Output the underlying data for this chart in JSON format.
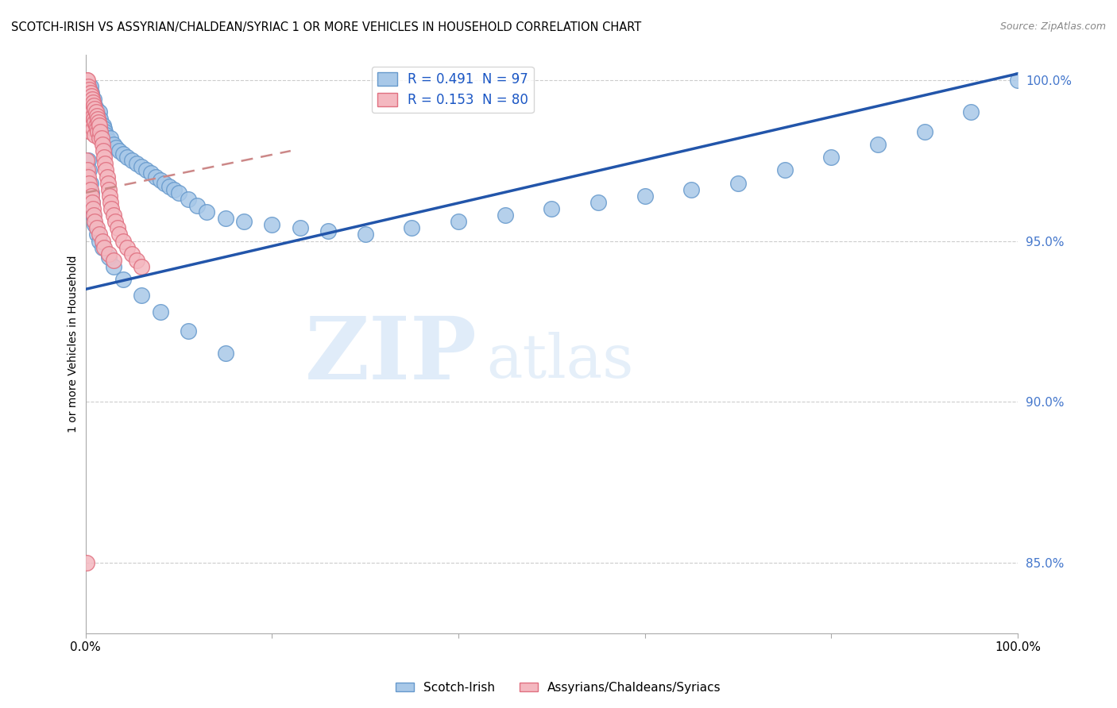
{
  "title": "SCOTCH-IRISH VS ASSYRIAN/CHALDEAN/SYRIAC 1 OR MORE VEHICLES IN HOUSEHOLD CORRELATION CHART",
  "source": "Source: ZipAtlas.com",
  "ylabel": "1 or more Vehicles in Household",
  "ytick_labels": [
    "85.0%",
    "90.0%",
    "95.0%",
    "100.0%"
  ],
  "ytick_values": [
    0.85,
    0.9,
    0.95,
    1.0
  ],
  "xlim": [
    0.0,
    1.0
  ],
  "ylim": [
    0.828,
    1.008
  ],
  "blue_color": "#a8c8e8",
  "blue_edge_color": "#6699cc",
  "pink_color": "#f4b8c0",
  "pink_edge_color": "#e07080",
  "blue_line_color": "#2255aa",
  "pink_line_color": "#cc8888",
  "R_blue": 0.491,
  "N_blue": 97,
  "R_pink": 0.153,
  "N_pink": 80,
  "legend_label_blue": "Scotch-Irish",
  "legend_label_pink": "Assyrians/Chaldeans/Syriacs",
  "watermark_zip": "ZIP",
  "watermark_atlas": "atlas",
  "blue_line_x0": 0.0,
  "blue_line_y0": 0.935,
  "blue_line_x1": 1.0,
  "blue_line_y1": 1.002,
  "pink_line_x0": 0.0,
  "pink_line_y0": 0.965,
  "pink_line_x1": 0.22,
  "pink_line_y1": 0.978,
  "blue_scatter_x": [
    0.001,
    0.002,
    0.002,
    0.003,
    0.003,
    0.004,
    0.004,
    0.004,
    0.005,
    0.005,
    0.005,
    0.006,
    0.006,
    0.006,
    0.007,
    0.007,
    0.008,
    0.008,
    0.009,
    0.009,
    0.01,
    0.01,
    0.011,
    0.011,
    0.012,
    0.012,
    0.013,
    0.013,
    0.014,
    0.015,
    0.015,
    0.016,
    0.017,
    0.018,
    0.019,
    0.02,
    0.021,
    0.022,
    0.023,
    0.025,
    0.027,
    0.03,
    0.033,
    0.036,
    0.04,
    0.045,
    0.05,
    0.055,
    0.06,
    0.065,
    0.07,
    0.075,
    0.08,
    0.085,
    0.09,
    0.095,
    0.1,
    0.11,
    0.12,
    0.13,
    0.15,
    0.17,
    0.2,
    0.23,
    0.26,
    0.3,
    0.35,
    0.4,
    0.45,
    0.5,
    0.55,
    0.6,
    0.65,
    0.7,
    0.75,
    0.8,
    0.85,
    0.9,
    0.95,
    1.0,
    0.003,
    0.004,
    0.005,
    0.006,
    0.007,
    0.008,
    0.01,
    0.012,
    0.015,
    0.018,
    0.025,
    0.03,
    0.04,
    0.06,
    0.08,
    0.11,
    0.15
  ],
  "blue_scatter_y": [
    0.998,
    0.996,
    0.99,
    0.998,
    0.992,
    0.998,
    0.994,
    0.988,
    0.998,
    0.994,
    0.99,
    0.996,
    0.992,
    0.987,
    0.994,
    0.99,
    0.992,
    0.988,
    0.994,
    0.989,
    0.992,
    0.987,
    0.991,
    0.986,
    0.99,
    0.985,
    0.989,
    0.984,
    0.988,
    0.99,
    0.985,
    0.988,
    0.986,
    0.984,
    0.986,
    0.985,
    0.984,
    0.983,
    0.982,
    0.981,
    0.982,
    0.98,
    0.979,
    0.978,
    0.977,
    0.976,
    0.975,
    0.974,
    0.973,
    0.972,
    0.971,
    0.97,
    0.969,
    0.968,
    0.967,
    0.966,
    0.965,
    0.963,
    0.961,
    0.959,
    0.957,
    0.956,
    0.955,
    0.954,
    0.953,
    0.952,
    0.954,
    0.956,
    0.958,
    0.96,
    0.962,
    0.964,
    0.966,
    0.968,
    0.972,
    0.976,
    0.98,
    0.984,
    0.99,
    1.0,
    0.975,
    0.972,
    0.968,
    0.965,
    0.962,
    0.958,
    0.955,
    0.952,
    0.95,
    0.948,
    0.945,
    0.942,
    0.938,
    0.933,
    0.928,
    0.922,
    0.915
  ],
  "pink_scatter_x": [
    0.001,
    0.001,
    0.002,
    0.002,
    0.002,
    0.003,
    0.003,
    0.003,
    0.004,
    0.004,
    0.004,
    0.005,
    0.005,
    0.005,
    0.005,
    0.006,
    0.006,
    0.006,
    0.007,
    0.007,
    0.007,
    0.008,
    0.008,
    0.008,
    0.009,
    0.009,
    0.01,
    0.01,
    0.01,
    0.011,
    0.011,
    0.012,
    0.012,
    0.013,
    0.013,
    0.014,
    0.015,
    0.015,
    0.016,
    0.017,
    0.018,
    0.019,
    0.02,
    0.021,
    0.022,
    0.023,
    0.024,
    0.025,
    0.026,
    0.027,
    0.028,
    0.03,
    0.032,
    0.034,
    0.036,
    0.04,
    0.045,
    0.05,
    0.055,
    0.06,
    0.001,
    0.001,
    0.002,
    0.002,
    0.003,
    0.003,
    0.004,
    0.005,
    0.006,
    0.007,
    0.008,
    0.009,
    0.01,
    0.012,
    0.015,
    0.018,
    0.02,
    0.025,
    0.03,
    0.001
  ],
  "pink_scatter_y": [
    1.0,
    0.998,
    1.0,
    0.996,
    0.992,
    0.998,
    0.994,
    0.99,
    0.997,
    0.993,
    0.989,
    0.996,
    0.992,
    0.988,
    0.984,
    0.995,
    0.991,
    0.987,
    0.994,
    0.99,
    0.986,
    0.993,
    0.989,
    0.985,
    0.992,
    0.988,
    0.991,
    0.987,
    0.983,
    0.99,
    0.986,
    0.989,
    0.985,
    0.988,
    0.984,
    0.987,
    0.986,
    0.982,
    0.984,
    0.982,
    0.98,
    0.978,
    0.976,
    0.974,
    0.972,
    0.97,
    0.968,
    0.966,
    0.964,
    0.962,
    0.96,
    0.958,
    0.956,
    0.954,
    0.952,
    0.95,
    0.948,
    0.946,
    0.944,
    0.942,
    0.975,
    0.97,
    0.972,
    0.968,
    0.97,
    0.966,
    0.968,
    0.966,
    0.964,
    0.962,
    0.96,
    0.958,
    0.956,
    0.954,
    0.952,
    0.95,
    0.948,
    0.946,
    0.944,
    0.85
  ]
}
